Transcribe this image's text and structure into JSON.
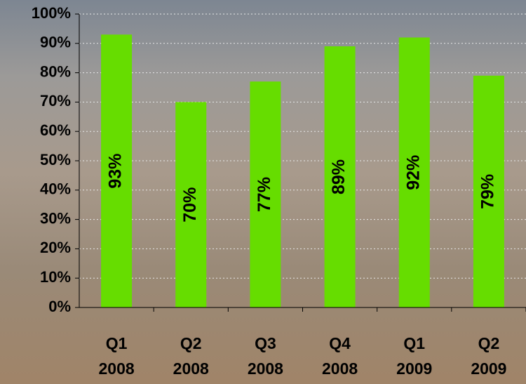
{
  "chart_data": {
    "type": "bar",
    "categories": [
      "Q1 2008",
      "Q2 2008",
      "Q3 2008",
      "Q4 2008",
      "Q1 2009",
      "Q2 2009"
    ],
    "values": [
      93,
      70,
      77,
      89,
      92,
      79
    ],
    "value_labels": [
      "93%",
      "70%",
      "77%",
      "89%",
      "92%",
      "79%"
    ],
    "color": "#66dd00",
    "ylim": [
      0,
      100
    ],
    "yticks": [
      {
        "value": 0,
        "label": "0%"
      },
      {
        "value": 10,
        "label": "10%"
      },
      {
        "value": 20,
        "label": "20%"
      },
      {
        "value": 30,
        "label": "30%"
      },
      {
        "value": 40,
        "label": "40%"
      },
      {
        "value": 50,
        "label": "50%"
      },
      {
        "value": 60,
        "label": "60%"
      },
      {
        "value": 70,
        "label": "70%"
      },
      {
        "value": 80,
        "label": "80%"
      },
      {
        "value": 90,
        "label": "90%"
      },
      {
        "value": 100,
        "label": "100%"
      }
    ],
    "grid": true
  }
}
